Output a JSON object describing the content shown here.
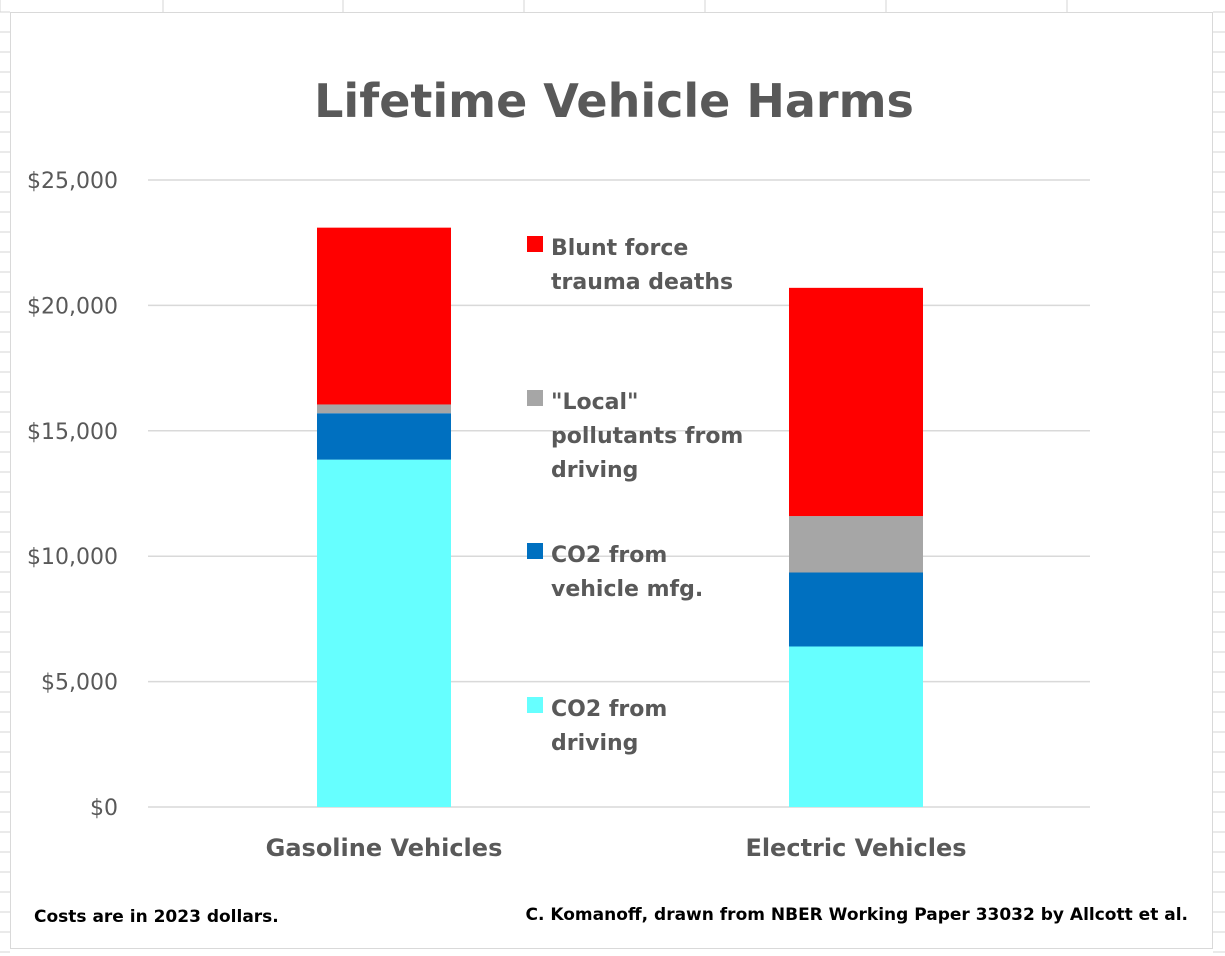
{
  "chart_data": {
    "type": "bar",
    "stacked": true,
    "title": "Lifetime Vehicle Harms",
    "categories": [
      "Gasoline Vehicles",
      "Electric Vehicles"
    ],
    "series": [
      {
        "name": "CO2 from driving",
        "color": "#66ffff",
        "values": [
          13850,
          6400
        ]
      },
      {
        "name": "CO2 from vehicle mfg.",
        "color": "#0070c0",
        "values": [
          1850,
          2950
        ]
      },
      {
        "name": "\"Local\" pollutants from driving",
        "color": "#a6a6a6",
        "values": [
          350,
          2250
        ]
      },
      {
        "name": "Blunt force trauma deaths",
        "color": "#ff0000",
        "values": [
          7050,
          9100
        ]
      }
    ],
    "legend_lines": [
      [
        "CO2 from",
        "driving"
      ],
      [
        "CO2 from",
        "vehicle mfg."
      ],
      [
        "\"Local\"",
        "pollutants from",
        "driving"
      ],
      [
        "Blunt force",
        "trauma deaths"
      ]
    ],
    "ylim": [
      0,
      25000
    ],
    "yticks": [
      0,
      5000,
      10000,
      15000,
      20000,
      25000
    ],
    "ytick_labels": [
      "$0",
      "$5,000",
      "$10,000",
      "$15,000",
      "$20,000",
      "$25,000"
    ],
    "grid": true,
    "legend_position": "center"
  },
  "footnotes": {
    "left": "Costs are in 2023 dollars.",
    "right": "C. Komanoff, drawn from NBER Working Paper 33032 by Allcott et al."
  }
}
